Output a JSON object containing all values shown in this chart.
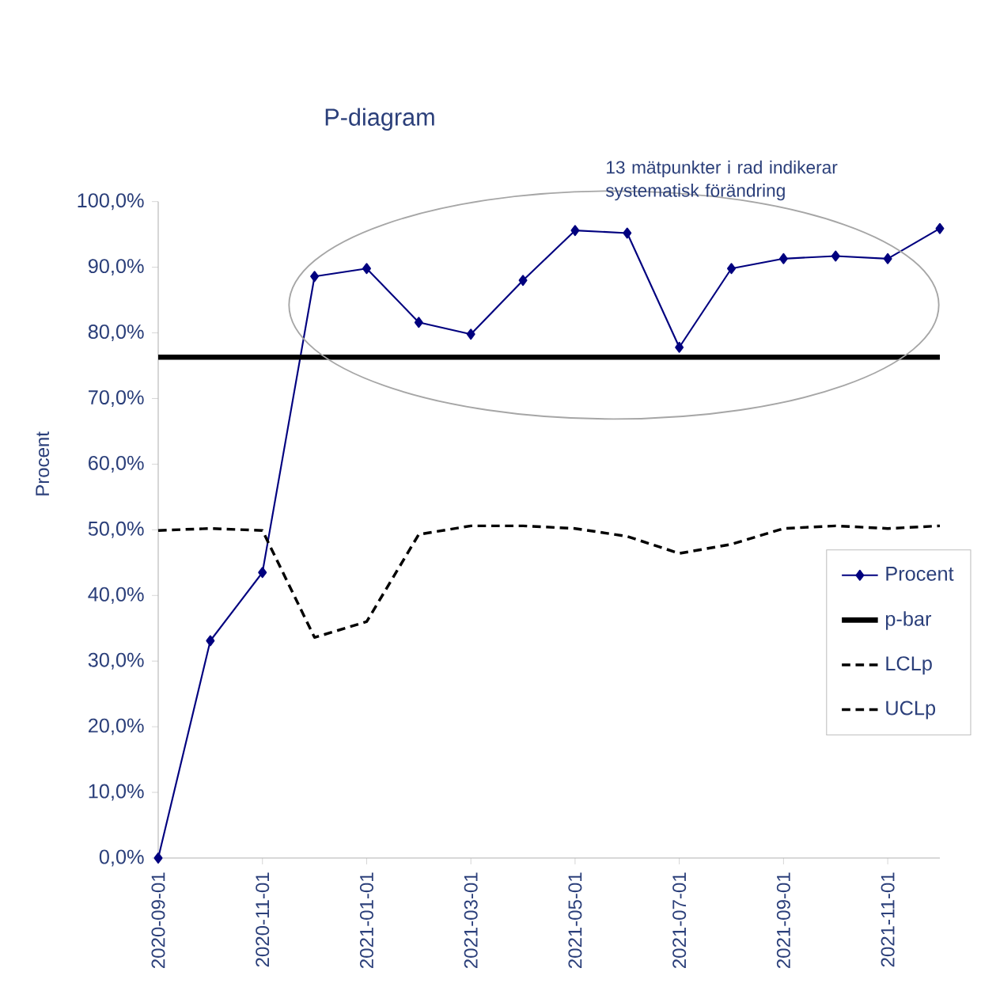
{
  "chart_data": {
    "type": "line",
    "title": "P-diagram",
    "ylabel": "Procent",
    "annotations": [
      "13 mätpunkter i rad indikerar systematisk förändring"
    ],
    "x": [
      "2020-09-01",
      "2020-10-01",
      "2020-11-01",
      "2020-12-01",
      "2021-01-01",
      "2021-02-01",
      "2021-03-01",
      "2021-04-01",
      "2021-05-01",
      "2021-06-01",
      "2021-07-01",
      "2021-08-01",
      "2021-09-01",
      "2021-10-01",
      "2021-11-01",
      "2021-12-01"
    ],
    "series": [
      {
        "name": "Procent",
        "color": "#00007f",
        "marker": "diamond",
        "line_style": "solid",
        "values": [
          0,
          33.1,
          43.5,
          88.6,
          89.8,
          81.6,
          79.8,
          88.0,
          95.6,
          95.2,
          77.8,
          89.8,
          91.3,
          91.7,
          91.3,
          95.9
        ]
      },
      {
        "name": "p-bar",
        "color": "#000000",
        "marker": "none",
        "line_style": "solid",
        "values": [
          76.3,
          76.3,
          76.3,
          76.3,
          76.3,
          76.3,
          76.3,
          76.3,
          76.3,
          76.3,
          76.3,
          76.3,
          76.3,
          76.3,
          76.3,
          76.3
        ]
      },
      {
        "name": "LCLp",
        "color": "#000000",
        "marker": "none",
        "line_style": "dashed",
        "values": [
          49.9,
          50.2,
          49.9,
          33.6,
          36.0,
          49.3,
          50.6,
          50.6,
          50.2,
          49.0,
          46.4,
          47.8,
          50.2,
          50.6,
          50.2,
          50.6
        ]
      },
      {
        "name": "UCLp",
        "color": "#000000",
        "marker": "none",
        "line_style": "dashed",
        "values": [
          null,
          null,
          null,
          null,
          null,
          null,
          null,
          null,
          null,
          null,
          null,
          null,
          null,
          null,
          null,
          null
        ]
      }
    ],
    "xlim": [
      "2020-09-01",
      "2021-12-01"
    ],
    "xticks": [
      "2020-09-01",
      "2020-11-01",
      "2021-01-01",
      "2021-03-01",
      "2021-05-01",
      "2021-07-01",
      "2021-09-01",
      "2021-11-01"
    ],
    "ylim": [
      0,
      100
    ],
    "yticks": [
      {
        "value": 0,
        "label": "0,0%"
      },
      {
        "value": 10,
        "label": "10,0%"
      },
      {
        "value": 20,
        "label": "20,0%"
      },
      {
        "value": 30,
        "label": "30,0%"
      },
      {
        "value": 40,
        "label": "40,0%"
      },
      {
        "value": 50,
        "label": "50,0%"
      },
      {
        "value": 60,
        "label": "60,0%"
      },
      {
        "value": 70,
        "label": "70,0%"
      },
      {
        "value": 80,
        "label": "80,0%"
      },
      {
        "value": 90,
        "label": "90,0%"
      },
      {
        "value": 100,
        "label": "100,0%"
      }
    ],
    "grid": false,
    "legend": "right"
  }
}
